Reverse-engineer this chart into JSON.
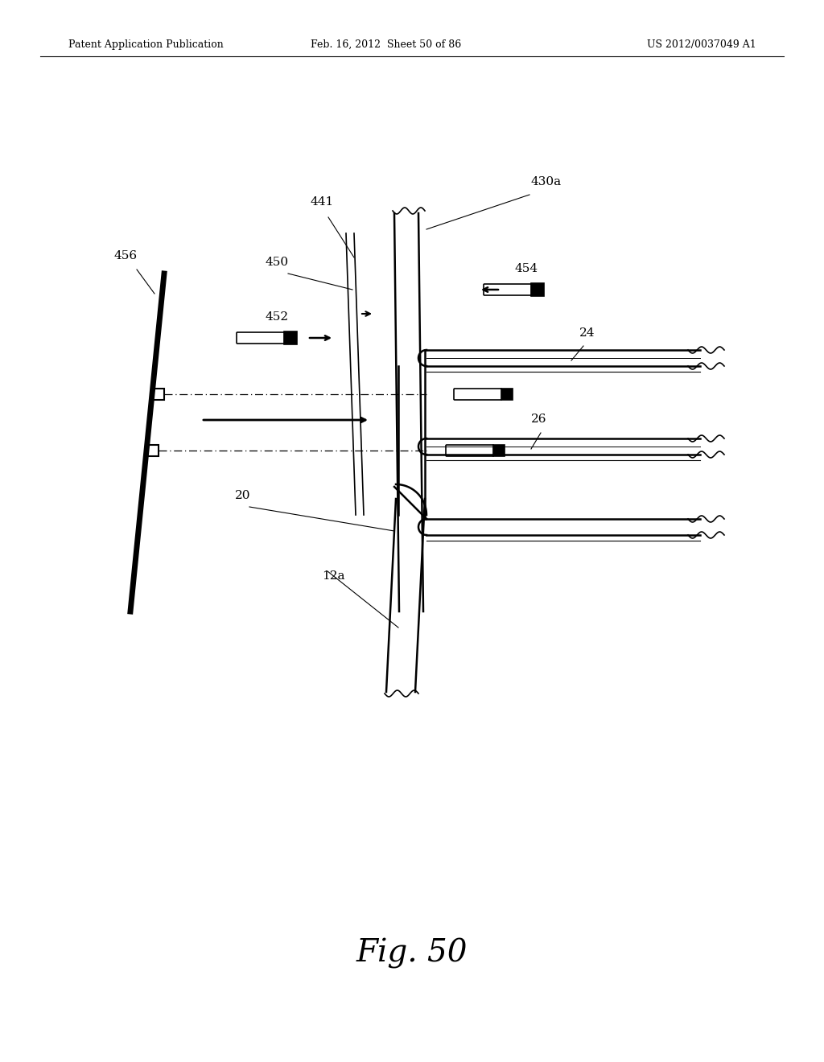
{
  "bg_color": "#ffffff",
  "header_left": "Patent Application Publication",
  "header_center": "Feb. 16, 2012  Sheet 50 of 86",
  "header_right": "US 2012/0037049 A1",
  "fig_label": "Fig. 50"
}
